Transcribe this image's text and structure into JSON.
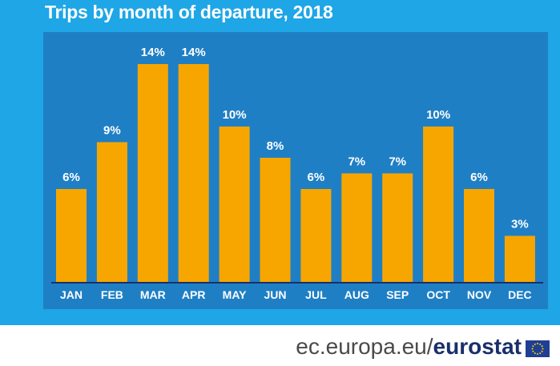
{
  "header": {
    "title": "Trips by month of departure, 2018"
  },
  "footer": {
    "domain": "ec.europa.eu/",
    "brand": "eurostat"
  },
  "colors": {
    "banner": "#1ea6e6",
    "plot_background": "#1f7fc5",
    "bar": "#f7a600",
    "axis": "#1a2f6a",
    "flag": "#1f3f95",
    "flag_stars": "#ffdd00"
  },
  "icons": {
    "logo": "eu-flag-icon"
  },
  "chart_data": {
    "type": "bar",
    "title": "Trips by month of departure, 2018",
    "categories": [
      "JAN",
      "FEB",
      "MAR",
      "APR",
      "MAY",
      "JUN",
      "JUL",
      "AUG",
      "SEP",
      "OCT",
      "NOV",
      "DEC"
    ],
    "values": [
      6,
      9,
      14,
      14,
      10,
      8,
      6,
      7,
      7,
      10,
      6,
      3
    ],
    "data_labels": [
      "6%",
      "9%",
      "14%",
      "14%",
      "10%",
      "8%",
      "6%",
      "7%",
      "7%",
      "10%",
      "6%",
      "3%"
    ],
    "unit": "%",
    "ylim": [
      0,
      14
    ],
    "grid": false,
    "legend": "none"
  }
}
